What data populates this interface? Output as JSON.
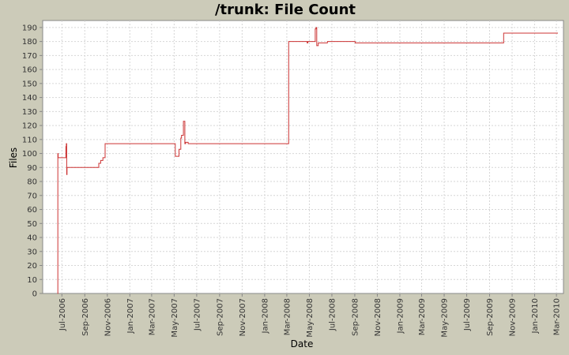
{
  "chart_data": {
    "type": "line",
    "title": "/trunk: File Count",
    "xlabel": "Date",
    "ylabel": "Files",
    "ylim": [
      0,
      195
    ],
    "xlim": [
      "2006-05-10",
      "2010-03-20"
    ],
    "y_ticks": [
      0,
      10,
      20,
      30,
      40,
      50,
      60,
      70,
      80,
      90,
      100,
      110,
      120,
      130,
      140,
      150,
      160,
      170,
      180,
      190
    ],
    "x_ticks": [
      {
        "date": "2006-07-01",
        "label": "Jul-2006"
      },
      {
        "date": "2006-09-01",
        "label": "Sep-2006"
      },
      {
        "date": "2006-11-01",
        "label": "Nov-2006"
      },
      {
        "date": "2007-01-01",
        "label": "Jan-2007"
      },
      {
        "date": "2007-03-01",
        "label": "Mar-2007"
      },
      {
        "date": "2007-05-01",
        "label": "May-2007"
      },
      {
        "date": "2007-07-01",
        "label": "Jul-2007"
      },
      {
        "date": "2007-09-01",
        "label": "Sep-2007"
      },
      {
        "date": "2007-11-01",
        "label": "Nov-2007"
      },
      {
        "date": "2008-01-01",
        "label": "Jan-2008"
      },
      {
        "date": "2008-03-01",
        "label": "Mar-2008"
      },
      {
        "date": "2008-05-01",
        "label": "May-2008"
      },
      {
        "date": "2008-07-01",
        "label": "Jul-2008"
      },
      {
        "date": "2008-09-01",
        "label": "Sep-2008"
      },
      {
        "date": "2008-11-01",
        "label": "Nov-2008"
      },
      {
        "date": "2009-01-01",
        "label": "Jan-2009"
      },
      {
        "date": "2009-03-01",
        "label": "Mar-2009"
      },
      {
        "date": "2009-05-01",
        "label": "May-2009"
      },
      {
        "date": "2009-07-01",
        "label": "Jul-2009"
      },
      {
        "date": "2009-09-01",
        "label": "Sep-2009"
      },
      {
        "date": "2009-11-01",
        "label": "Nov-2009"
      },
      {
        "date": "2010-01-01",
        "label": "Jan-2010"
      },
      {
        "date": "2010-03-01",
        "label": "Mar-2010"
      }
    ],
    "grid": true,
    "step": true,
    "color": "#cc3333",
    "series": [
      {
        "x": [
          "2006-06-19",
          "2006-06-20",
          "2006-06-21",
          "2006-06-22",
          "2006-07-12",
          "2006-07-13",
          "2006-07-14",
          "2006-07-15",
          "2006-07-16",
          "2006-10-09",
          "2006-10-14",
          "2006-10-20",
          "2006-10-26",
          "2007-05-04",
          "2007-05-06",
          "2007-05-14",
          "2007-05-19",
          "2007-05-21",
          "2007-05-26",
          "2007-05-30",
          "2007-06-01",
          "2007-06-08",
          "2007-06-13",
          "2008-03-06",
          "2008-04-25",
          "2008-04-27",
          "2008-05-17",
          "2008-05-19",
          "2008-05-21",
          "2008-05-25",
          "2008-06-19",
          "2008-08-28",
          "2008-09-02",
          "2009-10-09",
          "2010-03-05"
        ],
        "y": [
          0,
          100,
          97,
          97,
          105,
          107,
          85,
          90,
          90,
          93,
          95,
          97,
          107,
          98,
          98,
          103,
          111,
          113,
          123,
          107,
          108,
          107,
          107,
          180,
          179,
          180,
          189,
          190,
          177,
          179,
          180,
          180,
          179,
          186,
          186
        ]
      }
    ]
  }
}
